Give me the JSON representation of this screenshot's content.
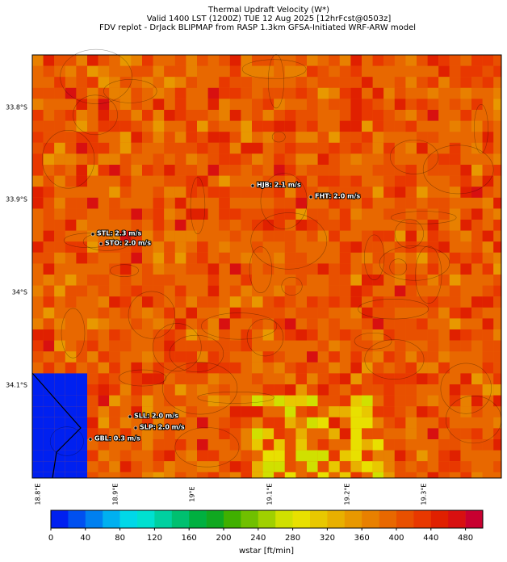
{
  "title": "Thermal Updraft Velocity (W*)",
  "subtitle": "Valid 1400 LST (1200Z) TUE 12 Aug 2025 [12hrFcst@0503z]",
  "source": "FDV replot - DrJack BLIPMAP from RASP 1.3km GFSA-Initiated WRF-ARW model",
  "lat_labels": [
    "33.8°S",
    "33.9°S",
    "34°S",
    "34.1°S"
  ],
  "lon_labels": [
    "18.8°E",
    "18.9°E",
    "19°E",
    "19.1°E",
    "19.2°E",
    "19.3°E"
  ],
  "stations": [
    "HJB: 2.1 m/s",
    "FHT: 2.0 m/s",
    "STL: 2.3 m/s",
    "STO: 2.0 m/s",
    "SLL: 2.0 m/s",
    "SLP: 2.0 m/s",
    "GBL: 0.3 m/s"
  ],
  "colorbar": {
    "label": "wstar [ft/min]",
    "lim": [
      0,
      500
    ],
    "ticks": [
      0,
      40,
      80,
      120,
      160,
      200,
      240,
      280,
      320,
      360,
      400,
      440,
      480
    ],
    "colors": [
      "#0020f0",
      "#0050f0",
      "#0080f0",
      "#00b0f0",
      "#00d8e8",
      "#00e0d0",
      "#00d0a0",
      "#00c070",
      "#00b040",
      "#10a820",
      "#40b000",
      "#70c000",
      "#a0d000",
      "#d0e000",
      "#e8e000",
      "#e8c800",
      "#e8b000",
      "#e89800",
      "#e88000",
      "#e86800",
      "#e85000",
      "#e83800",
      "#e02000",
      "#d81010",
      "#c80030"
    ]
  }
}
